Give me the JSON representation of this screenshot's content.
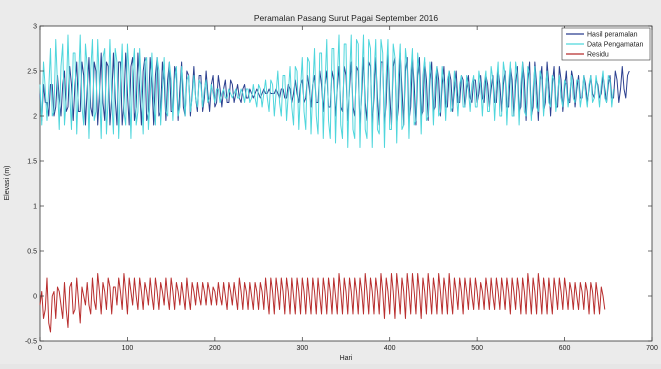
{
  "chart_data": {
    "type": "line",
    "title": "Peramalan Pasang Surut Pagai September 2016",
    "xlabel": "Hari",
    "ylabel": "Elevasi (m)",
    "xlim": [
      0,
      700
    ],
    "ylim": [
      -0.5,
      3
    ],
    "x_ticks": [
      0,
      100,
      200,
      300,
      400,
      500,
      600,
      700
    ],
    "y_ticks": [
      -0.5,
      0,
      0.5,
      1,
      1.5,
      2,
      2.5,
      3
    ],
    "grid": false,
    "legend_position": "top-right",
    "x_step": 2,
    "series": [
      {
        "name": "Hasil peramalan",
        "color": "#2b3f8f",
        "values": [
          2.25,
          1.95,
          2.35,
          2.15,
          2.15,
          2.0,
          2.35,
          2.35,
          2.0,
          2.1,
          2.45,
          2.2,
          2.0,
          2.35,
          2.5,
          2.05,
          2.1,
          2.55,
          2.35,
          1.95,
          2.35,
          2.6,
          2.05,
          2.05,
          2.6,
          2.45,
          1.9,
          2.3,
          2.65,
          2.1,
          2.0,
          2.6,
          2.5,
          1.9,
          2.25,
          2.7,
          2.15,
          1.95,
          2.6,
          2.55,
          1.9,
          2.2,
          2.7,
          2.2,
          1.9,
          2.6,
          2.6,
          1.9,
          2.15,
          2.7,
          2.25,
          1.9,
          2.55,
          2.65,
          1.95,
          2.1,
          2.7,
          2.3,
          1.9,
          2.5,
          2.65,
          1.95,
          2.05,
          2.65,
          2.35,
          1.9,
          2.45,
          2.65,
          2.0,
          2.05,
          2.6,
          2.4,
          1.95,
          2.4,
          2.6,
          2.05,
          2.05,
          2.55,
          2.45,
          1.95,
          2.3,
          2.6,
          2.1,
          2.0,
          2.5,
          2.45,
          2.0,
          2.25,
          2.55,
          2.2,
          2.05,
          2.45,
          2.45,
          2.05,
          2.2,
          2.5,
          2.25,
          2.05,
          2.35,
          2.45,
          2.1,
          2.15,
          2.45,
          2.3,
          2.1,
          2.3,
          2.4,
          2.15,
          2.15,
          2.4,
          2.35,
          2.15,
          2.25,
          2.35,
          2.2,
          2.15,
          2.3,
          2.35,
          2.2,
          2.2,
          2.3,
          2.25,
          2.2,
          2.25,
          2.3,
          2.25,
          2.2,
          2.25,
          2.3,
          2.25,
          2.25,
          2.3,
          2.25,
          2.25,
          2.25,
          2.3,
          2.25,
          2.2,
          2.3,
          2.3,
          2.2,
          2.2,
          2.35,
          2.3,
          2.15,
          2.25,
          2.4,
          2.25,
          2.15,
          2.35,
          2.4,
          2.15,
          2.2,
          2.45,
          2.3,
          2.1,
          2.35,
          2.45,
          2.15,
          2.15,
          2.5,
          2.35,
          2.05,
          2.35,
          2.5,
          2.1,
          2.1,
          2.5,
          2.4,
          2.0,
          2.3,
          2.55,
          2.1,
          2.05,
          2.55,
          2.45,
          1.95,
          2.3,
          2.6,
          2.1,
          2.0,
          2.55,
          2.5,
          1.9,
          2.25,
          2.65,
          2.15,
          1.95,
          2.6,
          2.55,
          1.9,
          2.2,
          2.65,
          2.2,
          1.9,
          2.6,
          2.6,
          1.9,
          2.15,
          2.7,
          2.25,
          1.9,
          2.55,
          2.65,
          1.9,
          2.1,
          2.7,
          2.3,
          1.9,
          2.5,
          2.65,
          1.95,
          2.1,
          2.65,
          2.35,
          1.9,
          2.45,
          2.65,
          2.0,
          2.05,
          2.6,
          2.4,
          1.95,
          2.4,
          2.6,
          2.05,
          2.1,
          2.55,
          2.4,
          2.0,
          2.35,
          2.55,
          2.1,
          2.1,
          2.5,
          2.4,
          2.05,
          2.3,
          2.5,
          2.15,
          2.15,
          2.45,
          2.4,
          2.1,
          2.3,
          2.45,
          2.2,
          2.15,
          2.4,
          2.4,
          2.15,
          2.25,
          2.45,
          2.2,
          2.15,
          2.45,
          2.35,
          2.1,
          2.3,
          2.45,
          2.15,
          2.15,
          2.5,
          2.35,
          2.05,
          2.35,
          2.5,
          2.1,
          2.1,
          2.55,
          2.4,
          2.0,
          2.35,
          2.55,
          2.05,
          2.1,
          2.6,
          2.4,
          1.95,
          2.4,
          2.6,
          2.0,
          2.1,
          2.6,
          2.35,
          1.95,
          2.4,
          2.55,
          2.05,
          2.15,
          2.6,
          2.35,
          2.0,
          2.35,
          2.55,
          2.1,
          2.1,
          2.55,
          2.4,
          2.05,
          2.3,
          2.5,
          2.15,
          2.15,
          2.5,
          2.4,
          2.1,
          2.3,
          2.45,
          2.2,
          2.2,
          2.45,
          2.35,
          2.15,
          2.3,
          2.45,
          2.25,
          2.2,
          2.4,
          2.35,
          2.2,
          2.25,
          2.45,
          2.3,
          2.15,
          2.35,
          2.45,
          2.2,
          2.2,
          2.5,
          2.4,
          2.15,
          2.3,
          2.55,
          2.3,
          2.2,
          2.45,
          2.5
        ]
      },
      {
        "name": "Data Pengamatan",
        "color": "#4fd6dc",
        "values": [
          2.35,
          1.9,
          2.6,
          2.3,
          1.95,
          2.3,
          2.75,
          2.0,
          2.05,
          2.85,
          2.35,
          1.85,
          2.55,
          2.8,
          1.9,
          2.2,
          2.9,
          2.25,
          1.85,
          2.7,
          2.7,
          1.8,
          2.35,
          2.9,
          2.1,
          1.9,
          2.8,
          2.55,
          1.75,
          2.5,
          2.85,
          1.95,
          2.05,
          2.85,
          2.35,
          1.75,
          2.65,
          2.75,
          1.8,
          2.2,
          2.85,
          2.2,
          1.8,
          2.75,
          2.6,
          1.75,
          2.35,
          2.8,
          2.05,
          1.9,
          2.8,
          2.45,
          1.75,
          2.5,
          2.75,
          1.9,
          2.05,
          2.75,
          2.3,
          1.8,
          2.6,
          2.65,
          1.85,
          2.2,
          2.7,
          2.15,
          1.9,
          2.65,
          2.5,
          1.9,
          2.3,
          2.65,
          2.05,
          2.0,
          2.6,
          2.4,
          1.95,
          2.4,
          2.55,
          2.0,
          2.1,
          2.55,
          2.3,
          2.0,
          2.4,
          2.45,
          2.05,
          2.2,
          2.45,
          2.2,
          2.1,
          2.4,
          2.35,
          2.1,
          2.3,
          2.4,
          2.15,
          2.2,
          2.35,
          2.25,
          2.15,
          2.3,
          2.3,
          2.15,
          2.25,
          2.3,
          2.2,
          2.2,
          2.3,
          2.25,
          2.2,
          2.25,
          2.3,
          2.2,
          2.2,
          2.3,
          2.25,
          2.15,
          2.3,
          2.3,
          2.15,
          2.2,
          2.35,
          2.2,
          2.1,
          2.35,
          2.3,
          2.1,
          2.25,
          2.4,
          2.2,
          2.05,
          2.4,
          2.35,
          2.0,
          2.25,
          2.5,
          2.15,
          2.0,
          2.45,
          2.45,
          1.95,
          2.25,
          2.55,
          2.1,
          1.9,
          2.55,
          2.5,
          1.85,
          2.3,
          2.65,
          2.05,
          1.85,
          2.65,
          2.6,
          1.8,
          2.3,
          2.75,
          2.0,
          1.8,
          2.7,
          2.7,
          1.75,
          2.35,
          2.85,
          1.95,
          1.75,
          2.75,
          2.75,
          1.7,
          2.4,
          2.9,
          1.9,
          1.75,
          2.8,
          2.8,
          1.65,
          2.4,
          2.9,
          1.85,
          1.75,
          2.85,
          2.8,
          1.65,
          2.4,
          2.9,
          1.85,
          1.75,
          2.85,
          2.75,
          1.65,
          2.45,
          2.85,
          1.85,
          1.8,
          2.85,
          2.7,
          1.65,
          2.45,
          2.85,
          1.85,
          1.85,
          2.8,
          2.65,
          1.7,
          2.45,
          2.8,
          1.85,
          1.9,
          2.75,
          2.55,
          1.75,
          2.45,
          2.75,
          1.9,
          1.95,
          2.7,
          2.45,
          1.8,
          2.45,
          2.65,
          1.95,
          2.0,
          2.6,
          2.4,
          1.9,
          2.4,
          2.55,
          2.0,
          2.05,
          2.55,
          2.35,
          1.95,
          2.4,
          2.5,
          2.05,
          2.1,
          2.5,
          2.3,
          2.0,
          2.35,
          2.45,
          2.1,
          2.1,
          2.45,
          2.3,
          2.05,
          2.35,
          2.45,
          2.1,
          2.1,
          2.5,
          2.35,
          2.0,
          2.35,
          2.5,
          2.05,
          2.05,
          2.55,
          2.4,
          1.95,
          2.35,
          2.6,
          2.0,
          2.0,
          2.6,
          2.45,
          1.9,
          2.35,
          2.6,
          2.0,
          2.0,
          2.6,
          2.45,
          1.9,
          2.35,
          2.6,
          2.05,
          2.0,
          2.55,
          2.45,
          1.95,
          2.3,
          2.55,
          2.1,
          2.05,
          2.5,
          2.4,
          2.0,
          2.3,
          2.5,
          2.15,
          2.1,
          2.45,
          2.4,
          2.05,
          2.25,
          2.45,
          2.2,
          2.1,
          2.4,
          2.35,
          2.1,
          2.25,
          2.45,
          2.2,
          2.15,
          2.4,
          2.4,
          2.1,
          2.25,
          2.45,
          2.25,
          2.1,
          2.35,
          2.45,
          2.15,
          2.2,
          2.45,
          2.3,
          2.1,
          2.35,
          2.5,
          2.2,
          2.15,
          2.45,
          2.4,
          2.1,
          2.3
        ]
      },
      {
        "name": "Residu",
        "color": "#b82e2e",
        "values": [
          -0.1,
          0.05,
          -0.25,
          -0.15,
          0.2,
          -0.3,
          -0.4,
          0.0,
          0.05,
          -0.25,
          0.1,
          0.05,
          -0.1,
          -0.25,
          0.15,
          -0.15,
          -0.35,
          0.1,
          0.15,
          -0.2,
          -0.15,
          0.2,
          -0.05,
          -0.3,
          0.1,
          0.0,
          -0.1,
          0.15,
          -0.1,
          -0.2,
          0.2,
          -0.05,
          -0.15,
          0.25,
          0.05,
          -0.2,
          0.15,
          0.05,
          -0.15,
          0.2,
          0.1,
          -0.2,
          0.1,
          0.1,
          -0.1,
          0.2,
          0.05,
          -0.15,
          0.25,
          0.05,
          -0.2,
          0.2,
          0.05,
          -0.1,
          0.2,
          0.0,
          -0.15,
          0.2,
          0.05,
          -0.15,
          0.15,
          0.05,
          -0.1,
          0.2,
          0.0,
          -0.15,
          0.2,
          0.05,
          -0.15,
          0.15,
          0.05,
          -0.1,
          0.2,
          0.0,
          -0.15,
          0.2,
          0.05,
          -0.15,
          0.15,
          0.05,
          -0.1,
          0.15,
          0.0,
          -0.15,
          0.2,
          0.0,
          -0.15,
          0.15,
          0.05,
          -0.1,
          0.15,
          0.0,
          -0.1,
          0.15,
          0.05,
          -0.1,
          0.15,
          0.05,
          -0.1,
          0.1,
          0.05,
          -0.1,
          0.15,
          0.0,
          -0.1,
          0.15,
          0.0,
          -0.15,
          0.15,
          0.05,
          -0.1,
          0.15,
          0.0,
          -0.15,
          0.2,
          0.05,
          -0.15,
          0.15,
          0.05,
          -0.15,
          0.15,
          0.0,
          -0.15,
          0.15,
          0.05,
          -0.15,
          0.15,
          0.05,
          -0.15,
          0.2,
          0.0,
          -0.2,
          0.2,
          0.05,
          -0.2,
          0.2,
          0.05,
          -0.15,
          0.2,
          0.05,
          -0.2,
          0.2,
          0.05,
          -0.2,
          0.2,
          0.0,
          -0.2,
          0.2,
          0.05,
          -0.2,
          0.2,
          0.05,
          -0.2,
          0.2,
          0.0,
          -0.2,
          0.2,
          0.05,
          -0.2,
          0.2,
          0.0,
          -0.2,
          0.2,
          0.05,
          -0.2,
          0.2,
          0.05,
          -0.2,
          0.2,
          0.0,
          -0.2,
          0.25,
          0.05,
          -0.2,
          0.2,
          0.05,
          -0.2,
          0.2,
          0.05,
          -0.2,
          0.2,
          0.05,
          -0.2,
          0.2,
          0.05,
          -0.2,
          0.25,
          0.05,
          -0.2,
          0.2,
          0.05,
          -0.2,
          0.2,
          0.05,
          -0.2,
          0.25,
          0.05,
          -0.25,
          0.2,
          0.05,
          -0.2,
          0.25,
          0.05,
          -0.25,
          0.25,
          0.05,
          -0.2,
          0.2,
          0.05,
          -0.25,
          0.25,
          0.05,
          -0.2,
          0.25,
          0.05,
          -0.2,
          0.25,
          0.05,
          -0.25,
          0.2,
          0.05,
          -0.2,
          0.25,
          0.05,
          -0.2,
          0.2,
          0.05,
          -0.2,
          0.25,
          0.05,
          -0.2,
          0.2,
          0.05,
          -0.2,
          0.25,
          0.0,
          -0.2,
          0.2,
          0.05,
          -0.15,
          0.2,
          0.05,
          -0.2,
          0.2,
          0.05,
          -0.15,
          0.2,
          0.0,
          -0.15,
          0.2,
          0.05,
          -0.15,
          0.15,
          0.05,
          -0.15,
          0.2,
          0.05,
          -0.15,
          0.2,
          0.0,
          -0.15,
          0.2,
          0.05,
          -0.15,
          0.2,
          0.05,
          -0.15,
          0.2,
          0.05,
          -0.2,
          0.2,
          0.05,
          -0.15,
          0.2,
          0.05,
          -0.2,
          0.2,
          0.05,
          -0.2,
          0.25,
          0.05,
          -0.2,
          0.2,
          0.05,
          -0.2,
          0.25,
          0.05,
          -0.2,
          0.2,
          0.05,
          -0.2,
          0.2,
          0.0,
          -0.2,
          0.2,
          0.05,
          -0.15,
          0.2,
          0.05,
          -0.15,
          0.2,
          0.05,
          -0.15,
          0.15,
          0.05,
          -0.15,
          0.15,
          0.0,
          -0.15,
          0.15,
          0.05,
          -0.15,
          0.15,
          0.05,
          -0.2,
          0.15,
          0.05,
          -0.2,
          0.15,
          0.0,
          -0.2,
          0.1,
          0.0,
          -0.15
        ]
      }
    ]
  }
}
